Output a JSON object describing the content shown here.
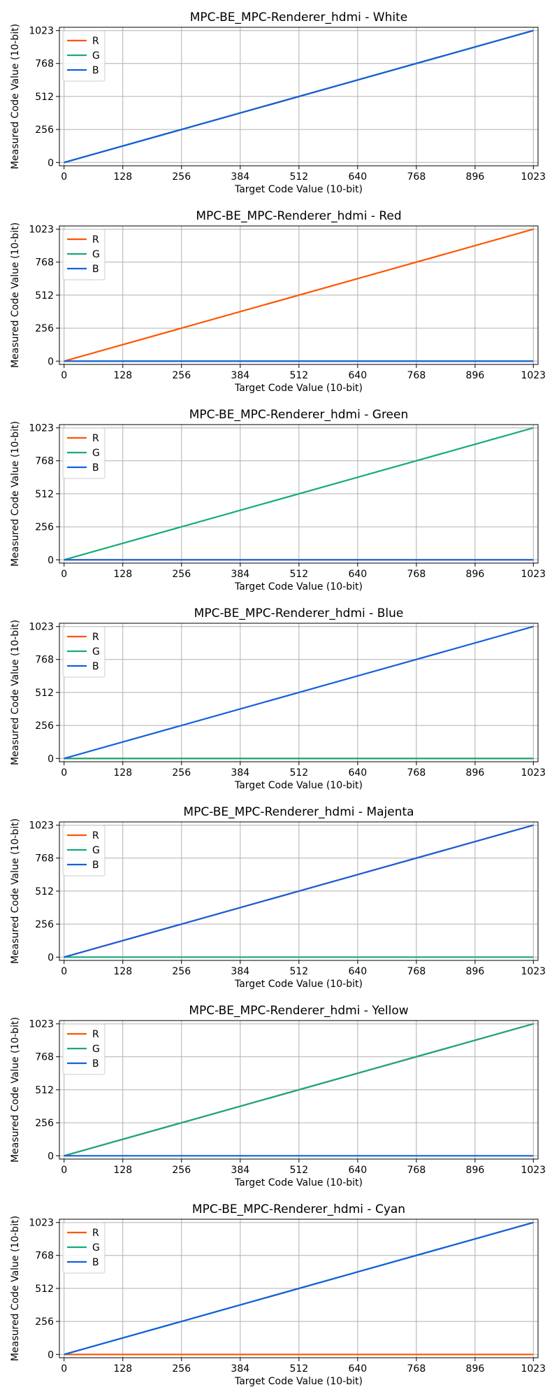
{
  "chart_data": [
    {
      "type": "line",
      "title": "MPC-BE_MPC-Renderer_hdmi - White",
      "xlabel": "Target Code Value (10-bit)",
      "ylabel": "Measured Code Value (10-bit)",
      "xlim": [
        0,
        1023
      ],
      "ylim": [
        0,
        1023
      ],
      "xticks": [
        0,
        128,
        256,
        384,
        512,
        640,
        768,
        896,
        1023
      ],
      "yticks": [
        0,
        256,
        512,
        768,
        1023
      ],
      "grid": true,
      "legend_position": "top-left",
      "series": [
        {
          "name": "R",
          "color": "#ff5500",
          "x": [
            0,
            1023
          ],
          "y": [
            0,
            1023
          ]
        },
        {
          "name": "G",
          "color": "#16aa7a",
          "x": [
            0,
            1023
          ],
          "y": [
            0,
            1023
          ]
        },
        {
          "name": "B",
          "color": "#1560dd",
          "x": [
            0,
            1023
          ],
          "y": [
            0,
            1023
          ]
        }
      ]
    },
    {
      "type": "line",
      "title": "MPC-BE_MPC-Renderer_hdmi - Red",
      "xlabel": "Target Code Value (10-bit)",
      "ylabel": "Measured Code Value (10-bit)",
      "xlim": [
        0,
        1023
      ],
      "ylim": [
        0,
        1023
      ],
      "xticks": [
        0,
        128,
        256,
        384,
        512,
        640,
        768,
        896,
        1023
      ],
      "yticks": [
        0,
        256,
        512,
        768,
        1023
      ],
      "grid": true,
      "legend_position": "top-left",
      "series": [
        {
          "name": "R",
          "color": "#ff5500",
          "x": [
            0,
            1023
          ],
          "y": [
            0,
            1023
          ]
        },
        {
          "name": "G",
          "color": "#16aa7a",
          "x": [
            0,
            1023
          ],
          "y": [
            0,
            0
          ]
        },
        {
          "name": "B",
          "color": "#1560dd",
          "x": [
            0,
            1023
          ],
          "y": [
            0,
            0
          ]
        }
      ]
    },
    {
      "type": "line",
      "title": "MPC-BE_MPC-Renderer_hdmi - Green",
      "xlabel": "Target Code Value (10-bit)",
      "ylabel": "Measured Code Value (10-bit)",
      "xlim": [
        0,
        1023
      ],
      "ylim": [
        0,
        1023
      ],
      "xticks": [
        0,
        128,
        256,
        384,
        512,
        640,
        768,
        896,
        1023
      ],
      "yticks": [
        0,
        256,
        512,
        768,
        1023
      ],
      "grid": true,
      "legend_position": "top-left",
      "series": [
        {
          "name": "R",
          "color": "#ff5500",
          "x": [
            0,
            1023
          ],
          "y": [
            0,
            0
          ]
        },
        {
          "name": "G",
          "color": "#16aa7a",
          "x": [
            0,
            1023
          ],
          "y": [
            0,
            1023
          ]
        },
        {
          "name": "B",
          "color": "#1560dd",
          "x": [
            0,
            1023
          ],
          "y": [
            0,
            0
          ]
        }
      ]
    },
    {
      "type": "line",
      "title": "MPC-BE_MPC-Renderer_hdmi - Blue",
      "xlabel": "Target Code Value (10-bit)",
      "ylabel": "Measured Code Value (10-bit)",
      "xlim": [
        0,
        1023
      ],
      "ylim": [
        0,
        1023
      ],
      "xticks": [
        0,
        128,
        256,
        384,
        512,
        640,
        768,
        896,
        1023
      ],
      "yticks": [
        0,
        256,
        512,
        768,
        1023
      ],
      "grid": true,
      "legend_position": "top-left",
      "series": [
        {
          "name": "R",
          "color": "#ff5500",
          "x": [
            0,
            1023
          ],
          "y": [
            0,
            0
          ]
        },
        {
          "name": "G",
          "color": "#16aa7a",
          "x": [
            0,
            1023
          ],
          "y": [
            0,
            0
          ]
        },
        {
          "name": "B",
          "color": "#1560dd",
          "x": [
            0,
            1023
          ],
          "y": [
            0,
            1023
          ]
        }
      ]
    },
    {
      "type": "line",
      "title": "MPC-BE_MPC-Renderer_hdmi - Majenta",
      "xlabel": "Target Code Value (10-bit)",
      "ylabel": "Measured Code Value (10-bit)",
      "xlim": [
        0,
        1023
      ],
      "ylim": [
        0,
        1023
      ],
      "xticks": [
        0,
        128,
        256,
        384,
        512,
        640,
        768,
        896,
        1023
      ],
      "yticks": [
        0,
        256,
        512,
        768,
        1023
      ],
      "grid": true,
      "legend_position": "top-left",
      "series": [
        {
          "name": "R",
          "color": "#ff5500",
          "x": [
            0,
            1023
          ],
          "y": [
            0,
            1023
          ]
        },
        {
          "name": "G",
          "color": "#16aa7a",
          "x": [
            0,
            1023
          ],
          "y": [
            0,
            0
          ]
        },
        {
          "name": "B",
          "color": "#1560dd",
          "x": [
            0,
            1023
          ],
          "y": [
            0,
            1023
          ]
        }
      ]
    },
    {
      "type": "line",
      "title": "MPC-BE_MPC-Renderer_hdmi - Yellow",
      "xlabel": "Target Code Value (10-bit)",
      "ylabel": "Measured Code Value (10-bit)",
      "xlim": [
        0,
        1023
      ],
      "ylim": [
        0,
        1023
      ],
      "xticks": [
        0,
        128,
        256,
        384,
        512,
        640,
        768,
        896,
        1023
      ],
      "yticks": [
        0,
        256,
        512,
        768,
        1023
      ],
      "grid": true,
      "legend_position": "top-left",
      "series": [
        {
          "name": "R",
          "color": "#ff5500",
          "x": [
            0,
            1023
          ],
          "y": [
            0,
            1023
          ]
        },
        {
          "name": "G",
          "color": "#16aa7a",
          "x": [
            0,
            1023
          ],
          "y": [
            0,
            1023
          ]
        },
        {
          "name": "B",
          "color": "#1560dd",
          "x": [
            0,
            1023
          ],
          "y": [
            0,
            0
          ]
        }
      ]
    },
    {
      "type": "line",
      "title": "MPC-BE_MPC-Renderer_hdmi - Cyan",
      "xlabel": "Target Code Value (10-bit)",
      "ylabel": "Measured Code Value (10-bit)",
      "xlim": [
        0,
        1023
      ],
      "ylim": [
        0,
        1023
      ],
      "xticks": [
        0,
        128,
        256,
        384,
        512,
        640,
        768,
        896,
        1023
      ],
      "yticks": [
        0,
        256,
        512,
        768,
        1023
      ],
      "grid": true,
      "legend_position": "top-left",
      "series": [
        {
          "name": "R",
          "color": "#ff5500",
          "x": [
            0,
            1023
          ],
          "y": [
            0,
            0
          ]
        },
        {
          "name": "G",
          "color": "#16aa7a",
          "x": [
            0,
            1023
          ],
          "y": [
            0,
            1023
          ]
        },
        {
          "name": "B",
          "color": "#1560dd",
          "x": [
            0,
            1023
          ],
          "y": [
            0,
            1023
          ]
        }
      ]
    }
  ]
}
